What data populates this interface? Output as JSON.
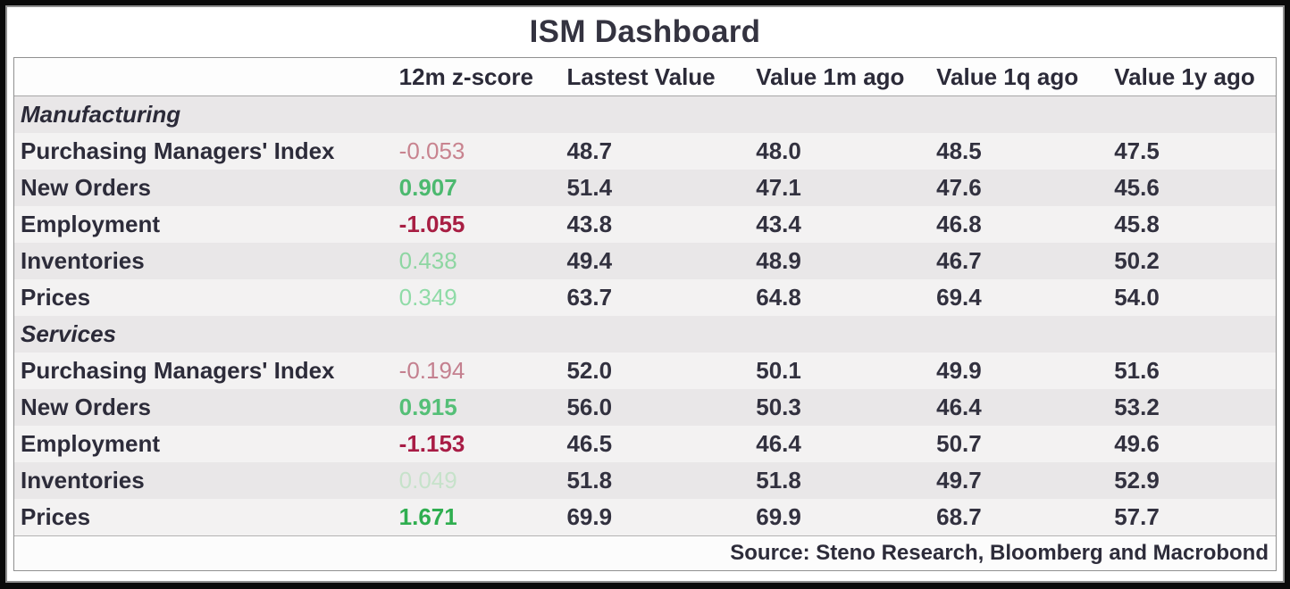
{
  "header": {
    "title": "ISM Dashboard"
  },
  "table": {
    "columns": [
      "",
      "12m z-score",
      "Lastest Value",
      "Value 1m ago",
      "Value 1q ago",
      "Value 1y ago"
    ],
    "sections": [
      {
        "name": "Manufacturing",
        "rows": [
          {
            "label": "Purchasing Managers' Index",
            "zscore": "-0.053",
            "zscore_color": "#c8838f",
            "zscore_bold": false,
            "latest": "48.7",
            "value_1m": "48.0",
            "value_1q": "48.5",
            "value_1y": "47.5"
          },
          {
            "label": "New Orders",
            "zscore": "0.907",
            "zscore_color": "#4cb96f",
            "zscore_bold": true,
            "latest": "51.4",
            "value_1m": "47.1",
            "value_1q": "47.6",
            "value_1y": "45.6"
          },
          {
            "label": "Employment",
            "zscore": "-1.055",
            "zscore_color": "#a81e43",
            "zscore_bold": true,
            "latest": "43.8",
            "value_1m": "43.4",
            "value_1q": "46.8",
            "value_1y": "45.8"
          },
          {
            "label": "Inventories",
            "zscore": "0.438",
            "zscore_color": "#8ed6a2",
            "zscore_bold": false,
            "latest": "49.4",
            "value_1m": "48.9",
            "value_1q": "46.7",
            "value_1y": "50.2"
          },
          {
            "label": "Prices",
            "zscore": "0.349",
            "zscore_color": "#8fdba7",
            "zscore_bold": false,
            "latest": "63.7",
            "value_1m": "64.8",
            "value_1q": "69.4",
            "value_1y": "54.0"
          }
        ]
      },
      {
        "name": "Services",
        "rows": [
          {
            "label": "Purchasing Managers' Index",
            "zscore": "-0.194",
            "zscore_color": "#c4808f",
            "zscore_bold": false,
            "latest": "52.0",
            "value_1m": "50.1",
            "value_1q": "49.9",
            "value_1y": "51.6"
          },
          {
            "label": "New Orders",
            "zscore": "0.915",
            "zscore_color": "#55bf77",
            "zscore_bold": true,
            "latest": "56.0",
            "value_1m": "50.3",
            "value_1q": "46.4",
            "value_1y": "53.2"
          },
          {
            "label": "Employment",
            "zscore": "-1.153",
            "zscore_color": "#a81c45",
            "zscore_bold": true,
            "latest": "46.5",
            "value_1m": "46.4",
            "value_1q": "50.7",
            "value_1y": "49.6"
          },
          {
            "label": "Inventories",
            "zscore": "0.049",
            "zscore_color": "#c6e2ca",
            "zscore_bold": false,
            "latest": "51.8",
            "value_1m": "51.8",
            "value_1q": "49.7",
            "value_1y": "52.9"
          },
          {
            "label": "Prices",
            "zscore": "1.671",
            "zscore_color": "#2fae50",
            "zscore_bold": true,
            "latest": "69.9",
            "value_1m": "69.9",
            "value_1q": "68.7",
            "value_1y": "57.7"
          }
        ]
      }
    ]
  },
  "footer": {
    "source": "Source: Steno Research, Bloomberg and Macrobond"
  },
  "colors": {
    "frame_black": "#0a0a0a",
    "panel_border": "#8f8f8f",
    "table_border": "#919191",
    "row_dark": "#e9e7e8",
    "row_light": "#f3f2f2",
    "header_bg": "#fdfdfd",
    "text_dark": "#2d2c3a",
    "negative_strong": "#a81e43",
    "positive_strong": "#2fae50"
  },
  "chart_data": {
    "type": "table",
    "title": "ISM Dashboard",
    "columns": [
      "",
      "12m z-score",
      "Lastest Value",
      "Value 1m ago",
      "Value 1q ago",
      "Value 1y ago"
    ],
    "rows": [
      [
        "Manufacturing",
        null,
        null,
        null,
        null,
        null
      ],
      [
        "Purchasing Managers' Index",
        -0.053,
        48.7,
        48.0,
        48.5,
        47.5
      ],
      [
        "New Orders",
        0.907,
        51.4,
        47.1,
        47.6,
        45.6
      ],
      [
        "Employment",
        -1.055,
        43.8,
        43.4,
        46.8,
        45.8
      ],
      [
        "Inventories",
        0.438,
        49.4,
        48.9,
        46.7,
        50.2
      ],
      [
        "Prices",
        0.349,
        63.7,
        64.8,
        69.4,
        54.0
      ],
      [
        "Services",
        null,
        null,
        null,
        null,
        null
      ],
      [
        "Purchasing Managers' Index",
        -0.194,
        52.0,
        50.1,
        49.9,
        51.6
      ],
      [
        "New Orders",
        0.915,
        56.0,
        50.3,
        46.4,
        53.2
      ],
      [
        "Employment",
        -1.153,
        46.5,
        46.4,
        50.7,
        49.6
      ],
      [
        "Inventories",
        0.049,
        51.8,
        51.8,
        49.7,
        52.9
      ],
      [
        "Prices",
        1.671,
        69.9,
        69.9,
        68.7,
        57.7
      ]
    ],
    "source": "Source: Steno Research, Bloomberg and Macrobond"
  }
}
